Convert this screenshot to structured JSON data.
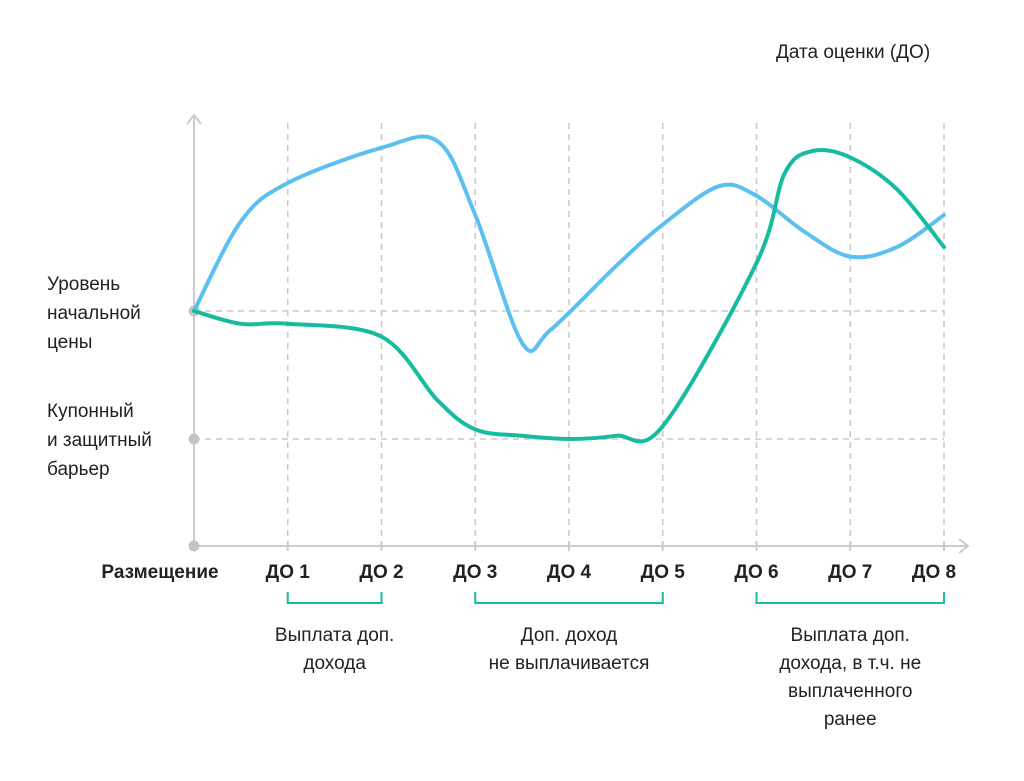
{
  "chart_data": {
    "type": "line",
    "title": "",
    "xlabel": "Дата оценки (ДО)",
    "origin_label": "Размещение",
    "categories": [
      "Размещение",
      "ДО 1",
      "ДО 2",
      "ДО 3",
      "ДО 4",
      "ДО 5",
      "ДО 6",
      "ДО 7",
      "ДО 8"
    ],
    "y_levels": [
      {
        "name": "Уровень начальной цены",
        "lines": [
          "Уровень",
          "начальной",
          "цены"
        ],
        "value": 100
      },
      {
        "name": "Купонный и защитный барьер",
        "lines": [
          "Купонный",
          "и защитный",
          "барьер"
        ],
        "value": 60
      }
    ],
    "ylim": [
      25,
      160
    ],
    "series": [
      {
        "name": "blue",
        "color": "#5bc0f0",
        "x": [
          0,
          0.5,
          1,
          2,
          2.6,
          3,
          3.5,
          3.8,
          4.5,
          5,
          5.6,
          6,
          6.5,
          7,
          7.5,
          8
        ],
        "values": [
          100,
          128,
          140,
          151,
          153,
          130,
          90,
          94,
          114,
          127,
          139,
          136,
          125,
          117,
          120,
          130
        ]
      },
      {
        "name": "green",
        "color": "#17bba0",
        "x": [
          0,
          0.5,
          1,
          2,
          2.6,
          3,
          3.5,
          4,
          4.5,
          5,
          6,
          6.3,
          6.6,
          7,
          7.5,
          8
        ],
        "values": [
          100,
          96,
          96,
          92,
          72,
          63,
          61,
          60,
          61,
          64,
          115,
          143,
          150,
          148,
          138,
          120
        ]
      }
    ],
    "groups": [
      {
        "from": 1,
        "to": 2,
        "caption": [
          "Выплата доп.",
          "дохода"
        ]
      },
      {
        "from": 3,
        "to": 5,
        "caption": [
          "Доп. доход",
          "не выплачивается"
        ]
      },
      {
        "from": 6,
        "to": 8,
        "caption": [
          "Выплата доп.",
          "дохода, в т.ч. не",
          "выплаченного",
          "ранее"
        ]
      }
    ],
    "colors": {
      "axis": "#cccccc",
      "grid": "#c8c8c8",
      "bracket": "#17bba0",
      "point": "#c4c4c4"
    }
  }
}
